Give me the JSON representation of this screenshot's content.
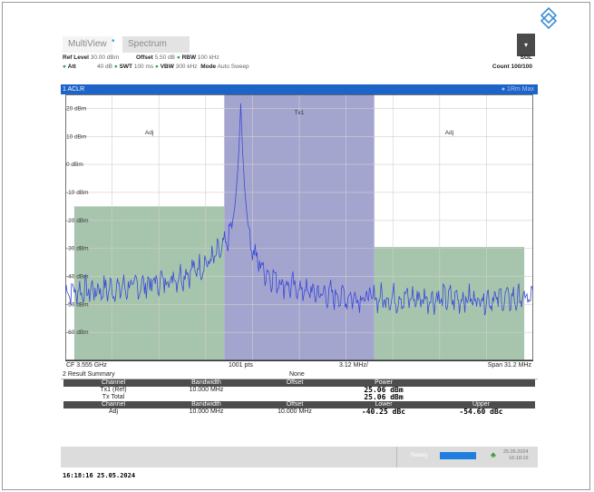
{
  "header": {
    "tabs": [
      {
        "label": "MultiView",
        "active": true
      },
      {
        "label": "Spectrum",
        "active": false
      }
    ]
  },
  "settings": {
    "ref_level_label": "Ref Level",
    "ref_level_value": "30.00 dBm",
    "offset_label": "Offset",
    "offset_value": "5.50 dB",
    "rbw_label": "RBW",
    "rbw_value": "100 kHz",
    "att_label": "Att",
    "att_value": "40 dB",
    "swt_label": "SWT",
    "swt_value": "100 ms",
    "vbw_label": "VBW",
    "vbw_value": "300 kHz",
    "mode_label": "Mode",
    "mode_value": "Auto Sweep",
    "sgl": "SGL",
    "count_label": "Count",
    "count_value": "100/100"
  },
  "window1": {
    "title": "1 ACLR",
    "trace_badge": "1Rm Max"
  },
  "plot": {
    "y_ticks": [
      "20 dBm",
      "10 dBm",
      "0 dBm",
      "-10 dBm",
      "-20 dBm",
      "-30 dBm",
      "-40 dBm",
      "-50 dBm",
      "-60 dBm"
    ],
    "channel_labels": {
      "adj_left": "Adj",
      "tx": "Tx1",
      "adj_right": "Adj"
    },
    "status": {
      "cf": "CF 3.555 GHz",
      "points": "1001 pts",
      "div": "3.12 MHz/",
      "span": "Span 31.2 MHz"
    }
  },
  "results": {
    "title": "2 Result Summary",
    "center_label": "None",
    "table1_headers": [
      "Channel",
      "Bandwidth",
      "Offset",
      "Power"
    ],
    "table1_rows": [
      {
        "channel": "Tx1 (Ref)",
        "bandwidth": "10.000 MHz",
        "offset": "",
        "power": "25.06 dBm"
      },
      {
        "channel": "Tx Total",
        "bandwidth": "",
        "offset": "",
        "power": "25.06 dBm"
      }
    ],
    "table2_headers": [
      "Channel",
      "Bandwidth",
      "Offset",
      "Lower",
      "Upper"
    ],
    "table2_rows": [
      {
        "channel": "Adj",
        "bandwidth": "10.000 MHz",
        "offset": "10.000 MHz",
        "lower": "-40.25 dBc",
        "upper": "-54.60 dBc"
      }
    ]
  },
  "statusbar": {
    "ready": "Ready",
    "date": "25.05.2024",
    "time": "16:18:16"
  },
  "footer": {
    "timestamp": "16:18:16  25.05.2024"
  },
  "colors": {
    "accent": "#1c64c8",
    "tx_channel": "#9fa0cc",
    "adj_channel": "#9dbfa4",
    "trace": "#3a4ad8"
  },
  "chart_data": {
    "type": "line",
    "ylim": [
      -70,
      25
    ],
    "y_ticks": [
      20,
      10,
      0,
      -10,
      -20,
      -30,
      -40,
      -50,
      -60
    ],
    "channels": [
      {
        "name": "Adj",
        "x_range_mhz": [
          -15,
          -5
        ],
        "limit_dbm": -15
      },
      {
        "name": "Tx1",
        "x_range_mhz": [
          -5,
          5
        ],
        "limit_dbm": 25
      },
      {
        "name": "Adj",
        "x_range_mhz": [
          5,
          15
        ],
        "limit_dbm": -29.5
      }
    ],
    "peak": {
      "x_mhz": -3.9,
      "y_dbm": 21.8
    }
  }
}
